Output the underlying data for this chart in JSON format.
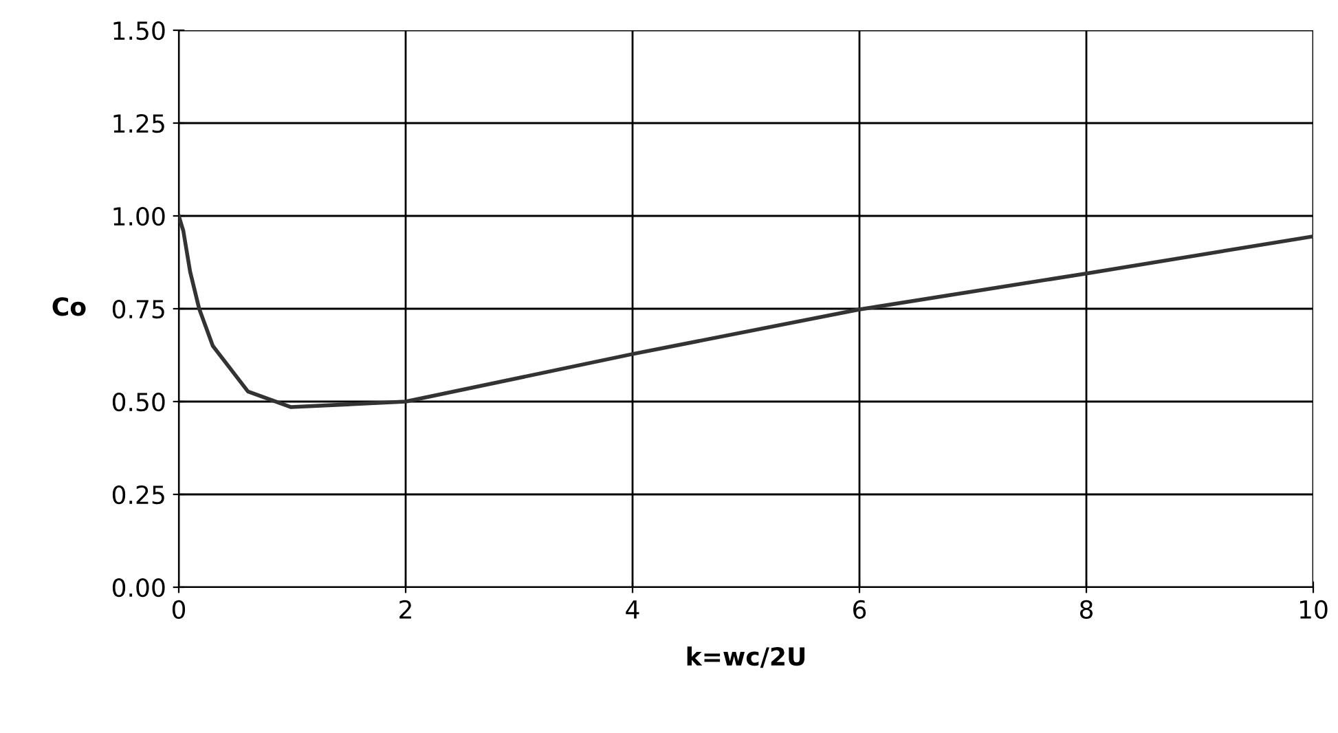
{
  "chart_data": {
    "type": "line",
    "xlabel": "k=wc/2U",
    "ylabel": "Co",
    "series": [
      {
        "color": "#333333",
        "x": [
          0,
          0.04,
          0.1,
          0.18,
          0.3,
          0.61,
          0.99,
          2,
          4,
          6,
          8,
          10
        ],
        "values": [
          1.0,
          0.96,
          0.85,
          0.75,
          0.65,
          0.527,
          0.485,
          0.5,
          0.628,
          0.748,
          0.845,
          0.945
        ]
      }
    ],
    "xlim": [
      0,
      10
    ],
    "xticks": [
      0,
      2,
      4,
      6,
      8,
      10
    ],
    "ylim": [
      0,
      1.5
    ],
    "yticks": [
      {
        "value": 0,
        "label": "0.00"
      },
      {
        "value": 0.25,
        "label": "0.25"
      },
      {
        "value": 0.5,
        "label": "0.50"
      },
      {
        "value": 0.75,
        "label": "0.75"
      },
      {
        "value": 1.0,
        "label": "1.00"
      },
      {
        "value": 1.25,
        "label": "1.25"
      },
      {
        "value": 1.5,
        "label": "1.50"
      }
    ],
    "grid": true,
    "marker": "none",
    "line_style": "solid"
  }
}
